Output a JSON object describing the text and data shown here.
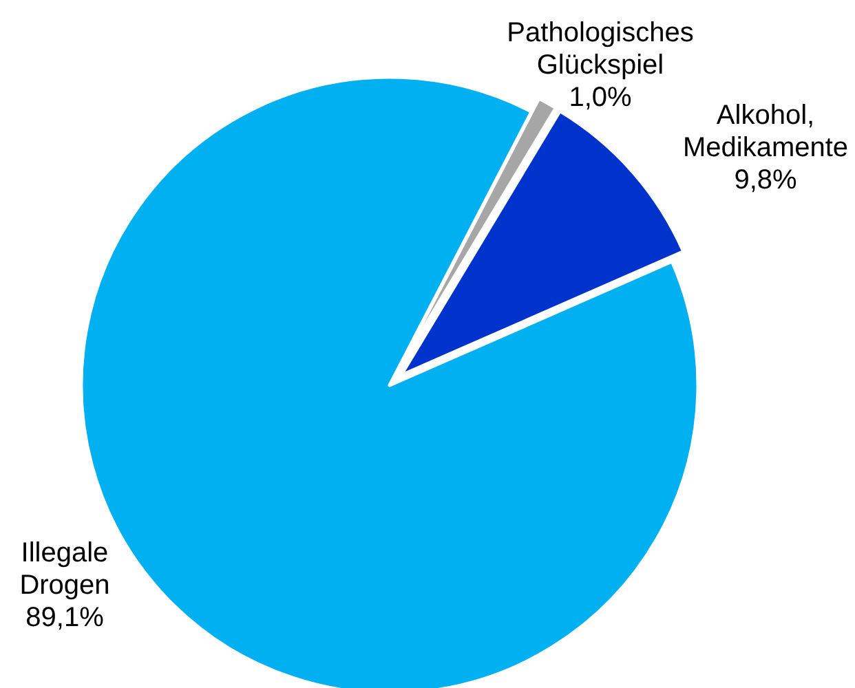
{
  "chart_data": {
    "type": "pie",
    "categories": [
      "Alkohol, Medikamente",
      "Illegale Drogen",
      "Pathologisches Glückspiel"
    ],
    "values": [
      9.8,
      89.1,
      1.0
    ],
    "colors": [
      "#0033cc",
      "#00b0f0",
      "#a6a6a6"
    ],
    "value_labels": [
      "9,8%",
      "89,1%",
      "1,0%"
    ]
  }
}
